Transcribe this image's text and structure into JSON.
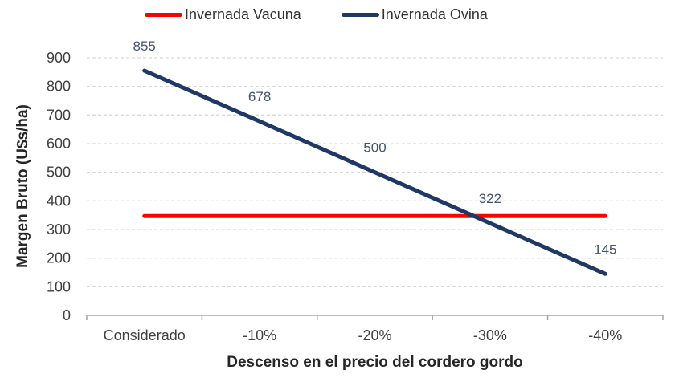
{
  "chart_data": {
    "type": "line",
    "title": "",
    "categories": [
      "Considerado",
      "-10%",
      "-20%",
      "-30%",
      "-40%"
    ],
    "series": [
      {
        "name": "Invernada Vacuna",
        "color": "#FF0000",
        "values": [
          347,
          347,
          347,
          347,
          347
        ],
        "show_data_labels": false
      },
      {
        "name": "Invernada Ovina",
        "color": "#1F3864",
        "values": [
          855,
          678,
          500,
          322,
          145
        ],
        "show_data_labels": true,
        "data_labels": [
          "855",
          "678",
          "500",
          "322",
          "145"
        ]
      }
    ],
    "xlabel": "Descenso en el precio del cordero gordo",
    "ylabel": "Margen Bruto (U$s/ha)",
    "ylim": [
      0,
      900
    ],
    "ytick_step": 100,
    "yticks": [
      "0",
      "100",
      "200",
      "300",
      "400",
      "500",
      "600",
      "700",
      "800",
      "900"
    ],
    "grid": "horizontal-dashed",
    "legend_position": "top-center"
  },
  "colors": {
    "gridline": "#D9D9D9",
    "axis_line": "#A6A6A6",
    "tick_label": "#404040",
    "data_label": "#44546A",
    "axis_title": "#262626",
    "background": "#FFFFFF"
  }
}
